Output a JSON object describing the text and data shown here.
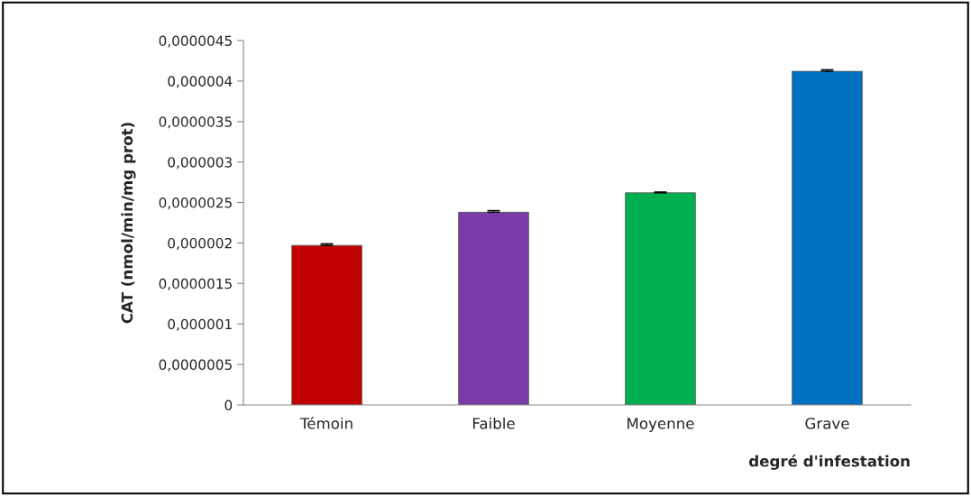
{
  "chart_data": {
    "type": "bar",
    "xlabel": "degré d'infestation",
    "ylabel": "CAT (nmol/min/mg prot)",
    "categories": [
      "Témoin",
      "Faible",
      "Moyenne",
      "Grave"
    ],
    "values": [
      1.97e-06,
      2.38e-06,
      2.62e-06,
      4.12e-06
    ],
    "errors": [
      2e-08,
      2e-08,
      1e-08,
      2e-08
    ],
    "colors": [
      "#c00000",
      "#7a3aa8",
      "#00b050",
      "#0070c0"
    ],
    "ylim": [
      0,
      4.5e-06
    ],
    "yticks": [
      0,
      {
        "value": 5e-07,
        "label": "0,0000005"
      },
      {
        "value": 1e-06,
        "label": "0,000001"
      },
      {
        "value": 1.5e-06,
        "label": "0,0000015"
      },
      {
        "value": 2e-06,
        "label": "0,000002"
      },
      {
        "value": 2.5e-06,
        "label": "0,0000025"
      },
      {
        "value": 3e-06,
        "label": "0,000003"
      },
      {
        "value": 3.5e-06,
        "label": "0,0000035"
      },
      {
        "value": 4e-06,
        "label": "0,000004"
      },
      {
        "value": 4.5e-06,
        "label": "0,0000045"
      }
    ],
    "grid": false,
    "legend": false
  }
}
